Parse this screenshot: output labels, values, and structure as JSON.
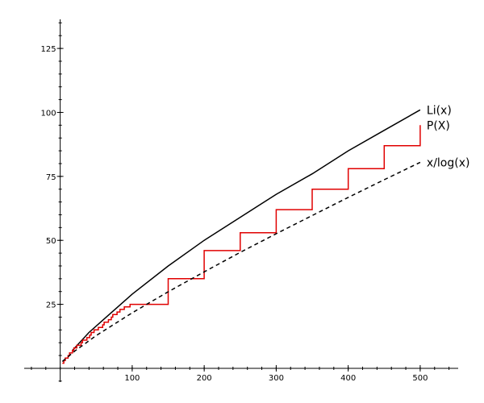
{
  "chart_data": {
    "type": "line",
    "title": "",
    "xlabel": "",
    "ylabel": "",
    "xlim": [
      -50,
      555
    ],
    "ylim": [
      -6,
      137
    ],
    "x_ticks": [
      100,
      200,
      300,
      400,
      500
    ],
    "y_ticks": [
      25,
      50,
      75,
      100,
      125
    ],
    "x_tick_labels": [
      "100",
      "200",
      "300",
      "400",
      "500"
    ],
    "y_tick_labels": [
      "25",
      "50",
      "75",
      "100",
      "125"
    ],
    "grid": false,
    "series": [
      {
        "name": "Li(x)",
        "color": "#000000",
        "style": "solid",
        "x": [
          17,
          40,
          60,
          80,
          100,
          150,
          200,
          250,
          300,
          350,
          400,
          450,
          500
        ],
        "values": [
          7,
          14,
          19,
          24,
          29,
          40,
          50,
          59,
          68,
          76,
          85,
          93,
          101
        ]
      },
      {
        "name": "P(X)",
        "color": "#e00000",
        "style": "step",
        "x": [
          3,
          5,
          7,
          11,
          13,
          17,
          19,
          23,
          29,
          31,
          37,
          41,
          43,
          47,
          53,
          59,
          61,
          67,
          71,
          73,
          79,
          83,
          89,
          97,
          100,
          150,
          200,
          250,
          300,
          350,
          400,
          450,
          500
        ],
        "values": [
          2,
          3,
          4,
          5,
          6,
          7,
          8,
          9,
          10,
          11,
          12,
          13,
          14,
          15,
          16,
          17,
          18,
          19,
          20,
          21,
          22,
          23,
          24,
          25,
          25,
          35,
          46,
          53,
          62,
          70,
          78,
          87,
          95
        ]
      },
      {
        "name": "x/log(x)",
        "color": "#000000",
        "style": "dashed",
        "x": [
          3,
          10,
          20,
          50,
          100,
          150,
          200,
          250,
          300,
          350,
          400,
          450,
          500
        ],
        "values": [
          2.7,
          4.3,
          6.7,
          12.8,
          21.7,
          29.9,
          37.7,
          45.3,
          52.6,
          59.7,
          66.8,
          73.7,
          80.5
        ]
      }
    ],
    "legend": "inline-right"
  }
}
